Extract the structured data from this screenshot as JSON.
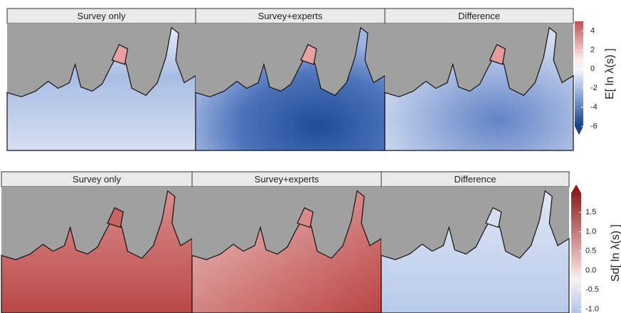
{
  "rows": [
    {
      "panels": [
        "Survey only",
        "Survey+experts",
        "Difference"
      ],
      "colorbar": {
        "label": "E[ ln λ(s) ]",
        "lim": [
          -6,
          5
        ],
        "ticks": [
          4,
          2,
          0,
          -2,
          -4,
          -6
        ]
      }
    },
    {
      "panels": [
        "Survey only",
        "Survey+experts",
        "Difference"
      ],
      "colorbar": {
        "label": "Sd[ ln λ(s) ]",
        "lim": [
          -1.1,
          2.0
        ],
        "ticks": [
          1.5,
          {
            "value": 1.0,
            "label": "1.0"
          },
          0.5,
          {
            "value": 0.0,
            "label": "0.0"
          },
          -0.5,
          {
            "value": -1.0,
            "label": "-1.0"
          }
        ]
      }
    }
  ]
}
